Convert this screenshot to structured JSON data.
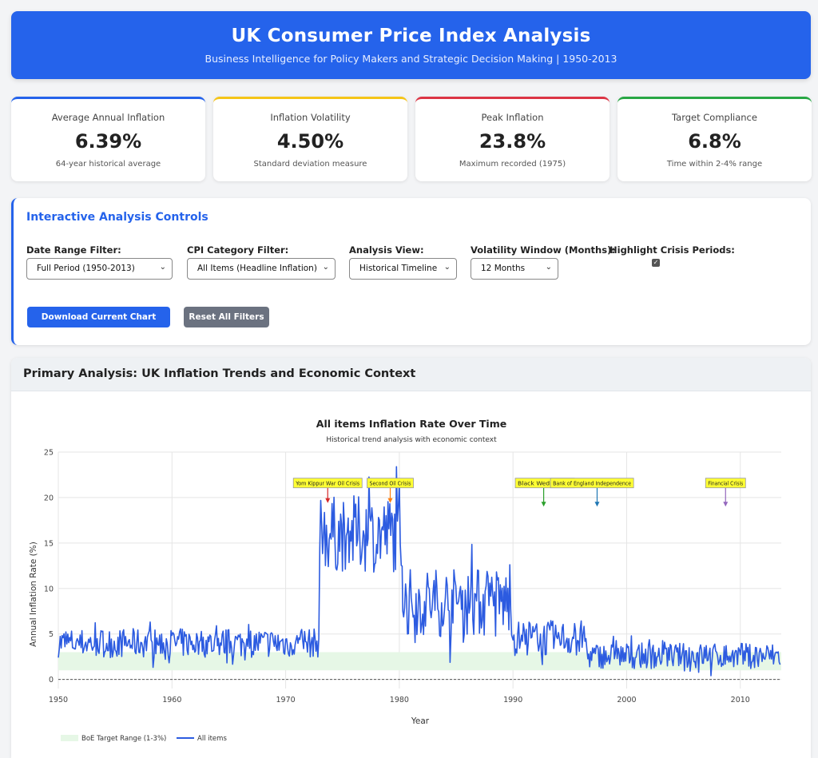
{
  "header": {
    "title": "UK Consumer Price Index Analysis",
    "subtitle": "Business Intelligence for Policy Makers and Strategic Decision Making | 1950-2013"
  },
  "kpis": [
    {
      "label": "Average Annual Inflation",
      "value": "6.39%",
      "sub": "64-year historical average",
      "color": "#2563eb"
    },
    {
      "label": "Inflation Volatility",
      "value": "4.50%",
      "sub": "Standard deviation measure",
      "color": "#f5c518"
    },
    {
      "label": "Peak Inflation",
      "value": "23.8%",
      "sub": "Maximum recorded (1975)",
      "color": "#dc3545"
    },
    {
      "label": "Target Compliance",
      "value": "6.8%",
      "sub": "Time within 2-4% range",
      "color": "#28a745"
    }
  ],
  "controls": {
    "title": "Interactive Analysis Controls",
    "date_range": {
      "label": "Date Range Filter:",
      "value": "Full Period (1950-2013)"
    },
    "category": {
      "label": "CPI Category Filter:",
      "value": "All Items (Headline Inflation)"
    },
    "view": {
      "label": "Analysis View:",
      "value": "Historical Timeline"
    },
    "volatility": {
      "label": "Volatility Window (Months):",
      "value": "12 Months"
    },
    "crisis": {
      "label": "Highlight Crisis Periods:",
      "checked": true
    },
    "download_label": "Download Current Chart (PNG)",
    "reset_label": "Reset All Filters"
  },
  "panel": {
    "title": "Primary Analysis: UK Inflation Trends and Economic Context"
  },
  "chart_data": {
    "type": "line",
    "title": "All items Inflation Rate Over Time",
    "subtitle": "Historical trend analysis with economic context",
    "xlabel": "Year",
    "ylabel": "Annual Inflation Rate (%)",
    "xlim": [
      1950,
      2013.6
    ],
    "ylim": [
      -1,
      25
    ],
    "xticks": [
      1950,
      1960,
      1970,
      1980,
      1990,
      2000,
      2010
    ],
    "yticks": [
      0,
      5,
      10,
      15,
      20,
      25
    ],
    "grid": true,
    "legend_placement": "bottom-left",
    "target_band": {
      "name": "BoE Target Range (1-3%)",
      "low": 1,
      "high": 3,
      "color": "#e6f7e6",
      "x_range": [
        1950,
        2013.6
      ]
    },
    "zero_line": true,
    "series": [
      {
        "name": "All items",
        "color": "#2c5be0",
        "segments": [
          {
            "start": 1950,
            "end": 1973.0,
            "base": 4.0,
            "amp": 1.6,
            "max": 8.0
          },
          {
            "start": 1973.0,
            "end": 1980.3,
            "base": 16.0,
            "amp": 4.2,
            "max": 23.8
          },
          {
            "start": 1980.3,
            "end": 1990.0,
            "base": 8.5,
            "amp": 3.8,
            "max": 15.3
          },
          {
            "start": 1990.0,
            "end": 1996.5,
            "base": 4.5,
            "amp": 2.0,
            "max": 9.0
          },
          {
            "start": 1996.5,
            "end": 2013.6,
            "base": 2.6,
            "amp": 1.4,
            "max": 6.0
          }
        ]
      }
    ],
    "annotations": [
      {
        "text": "Yom Kippur War Oil Crisis",
        "x": 1973.7,
        "y": 19.4,
        "color": "#d62728"
      },
      {
        "text": "Second Oil Crisis",
        "x": 1979.2,
        "y": 19.4,
        "color": "#ff7f0e"
      },
      {
        "text": "Black Wednesday",
        "x": 1992.7,
        "y": 19.0,
        "color": "#2ca02c"
      },
      {
        "text": "Bank of England Independence",
        "x": 1997.4,
        "y": 19.0,
        "color": "#1f77b4"
      },
      {
        "text": "Financial Crisis",
        "x": 2008.7,
        "y": 19.0,
        "color": "#9467bd"
      }
    ]
  }
}
